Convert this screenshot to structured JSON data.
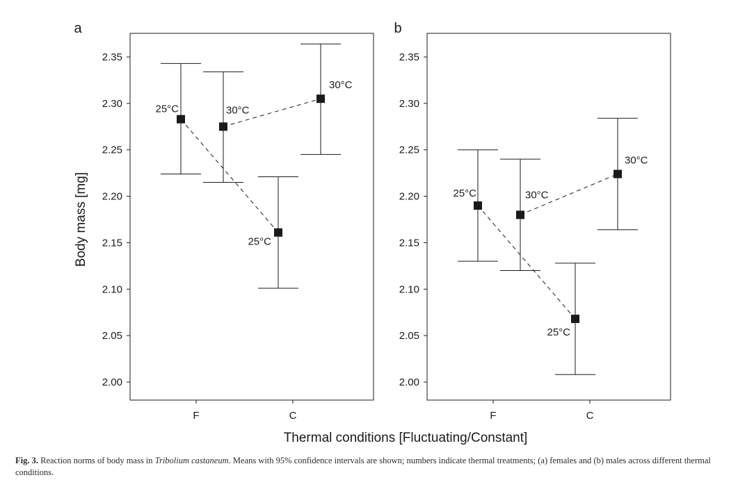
{
  "figure": {
    "ylabel": "Body mass [mg]",
    "xlabel": "Thermal conditions [Fluctuating/Constant]"
  },
  "caption": {
    "label": "Fig. 3.",
    "text_before": "Reaction norms of body mass in",
    "species": "Tribolium castaneum",
    "text_after": ". Means with 95% confidence intervals are shown; numbers indicate thermal treatments; (a) females and (b) males across different thermal conditions."
  },
  "chart_data": [
    {
      "type": "scatter",
      "panel_label": "a",
      "x_categories": [
        "F",
        "C"
      ],
      "ylim": [
        1.985,
        2.375
      ],
      "yticks": [
        "2.00",
        "2.05",
        "2.10",
        "2.15",
        "2.20",
        "2.25",
        "2.30",
        "2.35"
      ],
      "grid": false,
      "points": [
        {
          "id": "F25",
          "x": "F",
          "label": "25°C",
          "mean": 2.283,
          "ci_low": 2.224,
          "ci_high": 2.343
        },
        {
          "id": "F30",
          "x": "F",
          "label": "30°C",
          "mean": 2.275,
          "ci_low": 2.215,
          "ci_high": 2.334
        },
        {
          "id": "C25",
          "x": "C",
          "label": "25°C",
          "mean": 2.161,
          "ci_low": 2.101,
          "ci_high": 2.221
        },
        {
          "id": "C30",
          "x": "C",
          "label": "30°C",
          "mean": 2.305,
          "ci_low": 2.245,
          "ci_high": 2.364
        }
      ],
      "lines": [
        [
          "F25",
          "C25"
        ],
        [
          "F30",
          "C30"
        ]
      ]
    },
    {
      "type": "scatter",
      "panel_label": "b",
      "x_categories": [
        "F",
        "C"
      ],
      "ylim": [
        1.985,
        2.375
      ],
      "yticks": [
        "2.00",
        "2.05",
        "2.10",
        "2.15",
        "2.20",
        "2.25",
        "2.30",
        "2.35"
      ],
      "grid": false,
      "points": [
        {
          "id": "F25",
          "x": "F",
          "label": "25°C",
          "mean": 2.19,
          "ci_low": 2.13,
          "ci_high": 2.25
        },
        {
          "id": "F30",
          "x": "F",
          "label": "30°C",
          "mean": 2.18,
          "ci_low": 2.12,
          "ci_high": 2.24
        },
        {
          "id": "C25",
          "x": "C",
          "label": "25°C",
          "mean": 2.068,
          "ci_low": 2.008,
          "ci_high": 2.128
        },
        {
          "id": "C30",
          "x": "C",
          "label": "30°C",
          "mean": 2.224,
          "ci_low": 2.164,
          "ci_high": 2.284
        }
      ],
      "lines": [
        [
          "F25",
          "C25"
        ],
        [
          "F30",
          "C30"
        ]
      ]
    }
  ]
}
